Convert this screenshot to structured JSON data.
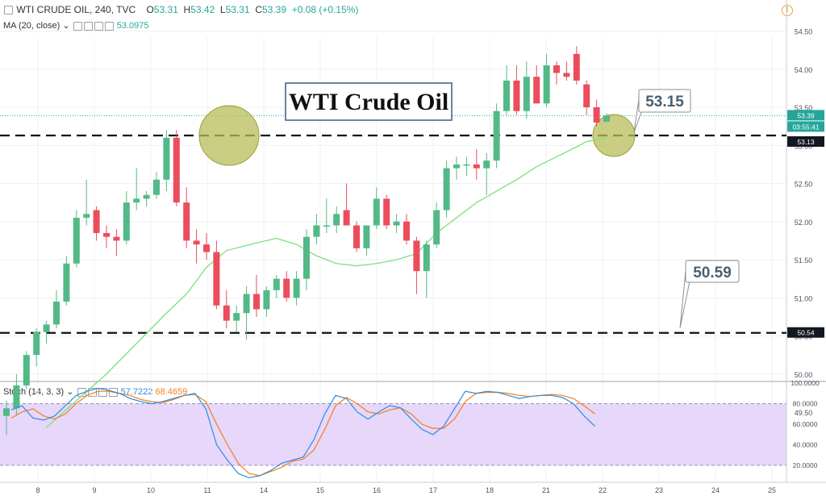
{
  "header": {
    "symbol": "WTI CRUDE OIL, 240, TVC",
    "open_label": "O",
    "open": "53.31",
    "high_label": "H",
    "high": "53.42",
    "low_label": "L",
    "low": "53.31",
    "close_label": "C",
    "close": "53.39",
    "change": "+0.08 (+0.15%)",
    "ma_label": "MA (20, close)",
    "ma_value": "53.0975",
    "warning_glyph": "!"
  },
  "stoch_header": {
    "label": "Stoch (14, 3, 3)",
    "k_value": "57.7222",
    "d_value": "68.4659"
  },
  "chart_data": {
    "type": "candlestick",
    "title": "WTI Crude Oil",
    "x_ticks": [
      "8",
      "9",
      "10",
      "11",
      "14",
      "15",
      "16",
      "17",
      "18",
      "21",
      "22",
      "23",
      "24",
      "25"
    ],
    "y_ticks": [
      "54.50",
      "54.00",
      "53.50",
      "53.00",
      "52.50",
      "52.00",
      "51.50",
      "51.00",
      "50.50",
      "50.00",
      "49.50"
    ],
    "ylim": [
      49.3,
      54.7
    ],
    "price_tags": [
      {
        "text": "53.39",
        "kind": "last",
        "color": "#26a69a"
      },
      {
        "text": "03:55:41",
        "kind": "countdown",
        "color": "#26a69a"
      },
      {
        "text": "53.13",
        "kind": "level",
        "color": "#131722"
      },
      {
        "text": "50.54",
        "kind": "level",
        "color": "#131722"
      }
    ],
    "levels": [
      53.13,
      50.54
    ],
    "callouts": [
      {
        "text": "53.15",
        "points_to": 53.13
      },
      {
        "text": "50.59",
        "points_to": 50.54
      }
    ],
    "candles": [
      [
        49.45,
        49.65,
        49.2,
        49.55
      ],
      [
        49.55,
        50.0,
        49.45,
        49.85
      ],
      [
        49.85,
        50.3,
        49.8,
        50.25
      ],
      [
        50.25,
        50.6,
        50.1,
        50.55
      ],
      [
        50.55,
        50.7,
        50.4,
        50.65
      ],
      [
        50.65,
        51.1,
        50.6,
        50.95
      ],
      [
        50.95,
        51.55,
        50.9,
        51.45
      ],
      [
        51.45,
        52.15,
        51.4,
        52.05
      ],
      [
        52.05,
        52.55,
        51.95,
        52.1
      ],
      [
        52.15,
        52.2,
        51.75,
        51.85
      ],
      [
        51.85,
        51.95,
        51.65,
        51.8
      ],
      [
        51.8,
        51.9,
        51.55,
        51.75
      ],
      [
        51.75,
        52.4,
        51.7,
        52.25
      ],
      [
        52.25,
        52.7,
        52.15,
        52.3
      ],
      [
        52.3,
        52.4,
        52.2,
        52.35
      ],
      [
        52.35,
        52.65,
        52.3,
        52.55
      ],
      [
        52.55,
        53.2,
        52.4,
        53.1
      ],
      [
        53.1,
        53.2,
        52.2,
        52.25
      ],
      [
        52.25,
        52.45,
        51.65,
        51.75
      ],
      [
        51.75,
        51.9,
        51.45,
        51.7
      ],
      [
        51.7,
        51.85,
        51.5,
        51.6
      ],
      [
        51.6,
        51.75,
        50.85,
        50.9
      ],
      [
        50.9,
        51.1,
        50.6,
        50.7
      ],
      [
        50.7,
        50.9,
        50.55,
        50.8
      ],
      [
        50.8,
        51.15,
        50.45,
        51.05
      ],
      [
        51.05,
        51.3,
        50.75,
        50.85
      ],
      [
        50.85,
        51.15,
        50.75,
        51.1
      ],
      [
        51.1,
        51.3,
        51.0,
        51.25
      ],
      [
        51.25,
        51.35,
        50.95,
        51.0
      ],
      [
        51.0,
        51.35,
        50.9,
        51.25
      ],
      [
        51.25,
        51.9,
        51.1,
        51.8
      ],
      [
        51.8,
        52.1,
        51.7,
        51.95
      ],
      [
        51.95,
        52.3,
        51.85,
        51.95
      ],
      [
        51.95,
        52.2,
        51.85,
        52.1
      ],
      [
        52.15,
        52.5,
        51.95,
        51.95
      ],
      [
        51.95,
        52.0,
        51.6,
        51.65
      ],
      [
        51.65,
        51.95,
        51.55,
        51.95
      ],
      [
        51.95,
        52.45,
        51.9,
        52.3
      ],
      [
        52.3,
        52.35,
        51.9,
        51.95
      ],
      [
        51.95,
        52.1,
        51.85,
        52.0
      ],
      [
        52.0,
        52.1,
        51.7,
        51.75
      ],
      [
        51.75,
        51.8,
        51.05,
        51.35
      ],
      [
        51.35,
        51.75,
        51.0,
        51.7
      ],
      [
        51.7,
        52.25,
        51.65,
        52.15
      ],
      [
        52.15,
        52.8,
        52.05,
        52.7
      ],
      [
        52.7,
        52.85,
        52.55,
        52.75
      ],
      [
        52.75,
        52.85,
        52.6,
        52.75
      ],
      [
        52.75,
        52.95,
        52.55,
        52.7
      ],
      [
        52.7,
        52.9,
        52.35,
        52.8
      ],
      [
        52.8,
        53.55,
        52.7,
        53.45
      ],
      [
        53.45,
        54.05,
        53.4,
        53.85
      ],
      [
        53.85,
        54.05,
        53.4,
        53.45
      ],
      [
        53.45,
        54.1,
        53.35,
        53.9
      ],
      [
        53.9,
        54.05,
        53.55,
        53.55
      ],
      [
        53.55,
        54.2,
        53.5,
        54.05
      ],
      [
        54.05,
        54.1,
        53.8,
        53.95
      ],
      [
        53.95,
        54.1,
        53.85,
        53.9
      ],
      [
        54.2,
        54.3,
        53.8,
        53.85
      ],
      [
        53.8,
        53.85,
        53.4,
        53.5
      ],
      [
        53.5,
        53.6,
        53.25,
        53.3
      ],
      [
        53.31,
        53.42,
        53.31,
        53.39
      ]
    ],
    "ma_line": [
      [
        4,
        49.3
      ],
      [
        10,
        50.0
      ],
      [
        16,
        50.8
      ],
      [
        18,
        51.05
      ],
      [
        20,
        51.4
      ],
      [
        22,
        51.62
      ],
      [
        25,
        51.72
      ],
      [
        27,
        51.78
      ],
      [
        29,
        51.7
      ],
      [
        31,
        51.55
      ],
      [
        33,
        51.45
      ],
      [
        35,
        51.42
      ],
      [
        37,
        51.45
      ],
      [
        39,
        51.5
      ],
      [
        41,
        51.58
      ],
      [
        43,
        51.85
      ],
      [
        45,
        52.05
      ],
      [
        47,
        52.25
      ],
      [
        49,
        52.4
      ],
      [
        51,
        52.55
      ],
      [
        53,
        52.72
      ],
      [
        55,
        52.85
      ],
      [
        57,
        52.98
      ],
      [
        58,
        53.05
      ],
      [
        60,
        53.1
      ]
    ],
    "stoch": {
      "y_ticks": [
        "100.0000",
        "80.0000",
        "60.0000",
        "40.0000",
        "20.0000"
      ],
      "band": [
        20,
        80
      ],
      "k": [
        74,
        78,
        66,
        64,
        68,
        78,
        88,
        92,
        95,
        93,
        90,
        85,
        82,
        80,
        82,
        85,
        88,
        90,
        75,
        40,
        25,
        12,
        8,
        10,
        15,
        22,
        25,
        28,
        45,
        70,
        88,
        85,
        72,
        65,
        72,
        78,
        76,
        65,
        55,
        50,
        58,
        75,
        92,
        90,
        92,
        91,
        88,
        85,
        87,
        88,
        88,
        86,
        80,
        68,
        58
      ],
      "d": [
        66,
        72,
        75,
        68,
        65,
        70,
        80,
        88,
        92,
        92,
        90,
        88,
        84,
        82,
        81,
        84,
        88,
        89,
        82,
        60,
        40,
        22,
        12,
        10,
        14,
        18,
        24,
        26,
        35,
        55,
        78,
        86,
        80,
        72,
        70,
        74,
        76,
        70,
        60,
        56,
        56,
        65,
        82,
        90,
        91,
        91,
        90,
        88,
        87,
        88,
        89,
        88,
        85,
        78,
        70
      ]
    }
  }
}
